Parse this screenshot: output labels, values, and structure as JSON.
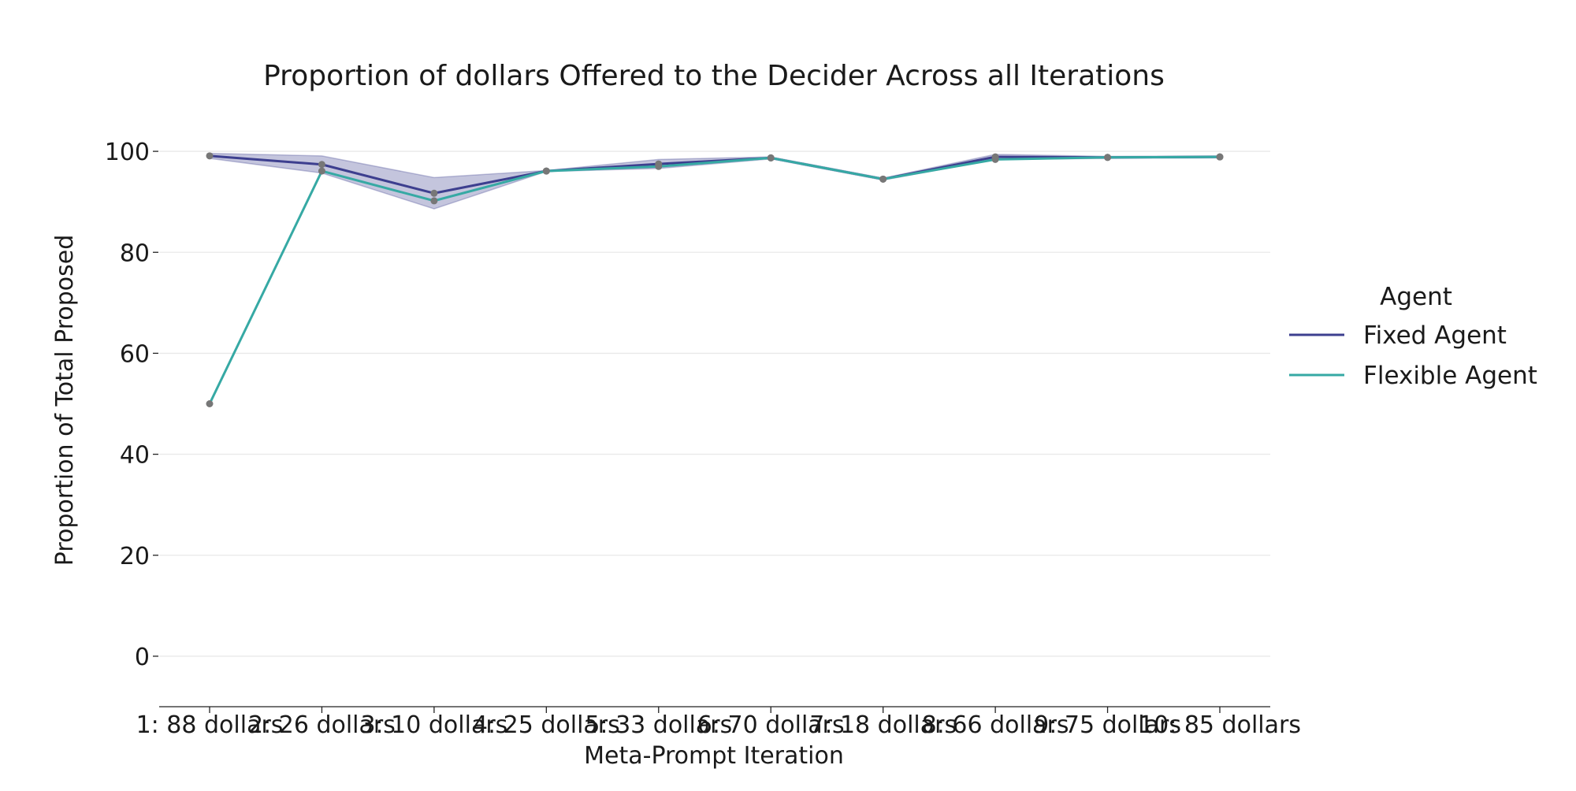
{
  "chart_data": {
    "type": "line",
    "title": "Proportion of dollars Offered to the Decider Across all Iterations",
    "xlabel": "Meta-Prompt Iteration",
    "ylabel": "Proportion of Total Proposed",
    "categories": [
      "1: 88 dollars",
      "2: 26 dollars",
      "3: 10 dollars",
      "4: 25 dollars",
      "5: 33 dollars",
      "6: 70 dollars",
      "7: 18 dollars",
      "8: 66 dollars",
      "9: 75 dollars",
      "10: 85 dollars"
    ],
    "ylim": [
      -10,
      110
    ],
    "yticks": [
      0,
      20,
      40,
      60,
      80,
      100
    ],
    "grid": true,
    "legend": {
      "title": "Agent",
      "placement": "right"
    },
    "series": [
      {
        "name": "Fixed Agent",
        "color": "#3d3f8f",
        "values": [
          99.1,
          97.4,
          91.7,
          96.1,
          97.5,
          98.7,
          94.5,
          98.9,
          98.8,
          98.9
        ],
        "ci_lower": [
          98.6,
          95.7,
          88.6,
          96.0,
          96.6,
          98.5,
          94.3,
          98.4,
          98.6,
          98.7
        ],
        "ci_upper": [
          99.6,
          99.1,
          94.8,
          96.2,
          98.4,
          98.9,
          94.7,
          99.4,
          99.0,
          99.1
        ]
      },
      {
        "name": "Flexible Agent",
        "color": "#36a9a4",
        "values": [
          50.0,
          96.1,
          90.2,
          96.1,
          97.0,
          98.7,
          94.5,
          98.4,
          98.8,
          98.9
        ]
      }
    ]
  }
}
